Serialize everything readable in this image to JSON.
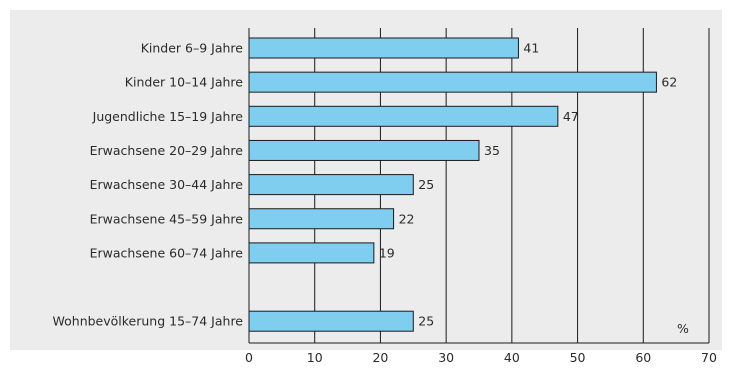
{
  "chart_data": {
    "type": "bar",
    "orientation": "horizontal",
    "categories": [
      "Kinder 6–9 Jahre",
      "Kinder 10–14 Jahre",
      "Jugendliche 15–19 Jahre",
      "Erwachsene 20–29 Jahre",
      "Erwachsene 30–44 Jahre",
      "Erwachsene 45–59 Jahre",
      "Erwachsene 60–74 Jahre",
      "",
      "Wohnbevölkerung 15–74 Jahre"
    ],
    "values": [
      41,
      62,
      47,
      35,
      25,
      22,
      19,
      null,
      25
    ],
    "value_labels": [
      "41",
      "62",
      "47",
      "35",
      "25",
      "22",
      "19",
      "",
      "25"
    ],
    "x_ticks": [
      0,
      10,
      20,
      30,
      40,
      50,
      60,
      70
    ],
    "x_tick_labels": [
      "0",
      "10",
      "20",
      "30",
      "40",
      "50",
      "60",
      "70"
    ],
    "xlim": [
      0,
      70
    ],
    "unit": "%",
    "grid": "vertical",
    "colors": {
      "bar_fill": "#7fcdef",
      "bar_stroke": "#1a1a1a",
      "panel_bg": "#ececec",
      "grid": "#1a1a1a",
      "text": "#2b2b2b"
    }
  }
}
